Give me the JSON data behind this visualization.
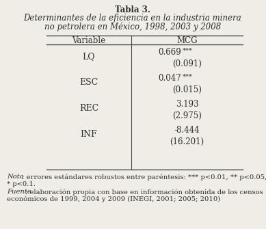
{
  "title_bold": "Tabla 3.",
  "title_italic": "Determinantes de la eficiencia en la industria minera\nno petrolera en México, 1998, 2003 y 2008",
  "col_headers": [
    "Variable",
    "MCG"
  ],
  "rows": [
    [
      "LQ",
      "0.669",
      "***",
      "(0.091)"
    ],
    [
      "ESC",
      "0.047",
      "***",
      "(0.015)"
    ],
    [
      "REC",
      "3.193",
      "",
      "(2.975)"
    ],
    [
      "INF",
      "-8.444",
      "",
      "(16.201)"
    ]
  ],
  "nota_italic": "Nota",
  "nota_rest": ": errores estándares robustos entre paréntesis: *** p<0.01, ** p<0.05,\n* p<0.1.",
  "fuente_italic": "Fuente",
  "fuente_rest": ": elaboración propia con base en información obtenida de los censos\neconómicos de 1999, 2004 y 2009 (INEGI, 2001; 2005; 2010)",
  "bg_color": "#f0ede6",
  "text_color": "#2e2e2e",
  "line_color": "#4a4a4a",
  "fs_title": 8.5,
  "fs_table": 8.5,
  "fs_note": 7.2,
  "fs_stars": 7.0
}
